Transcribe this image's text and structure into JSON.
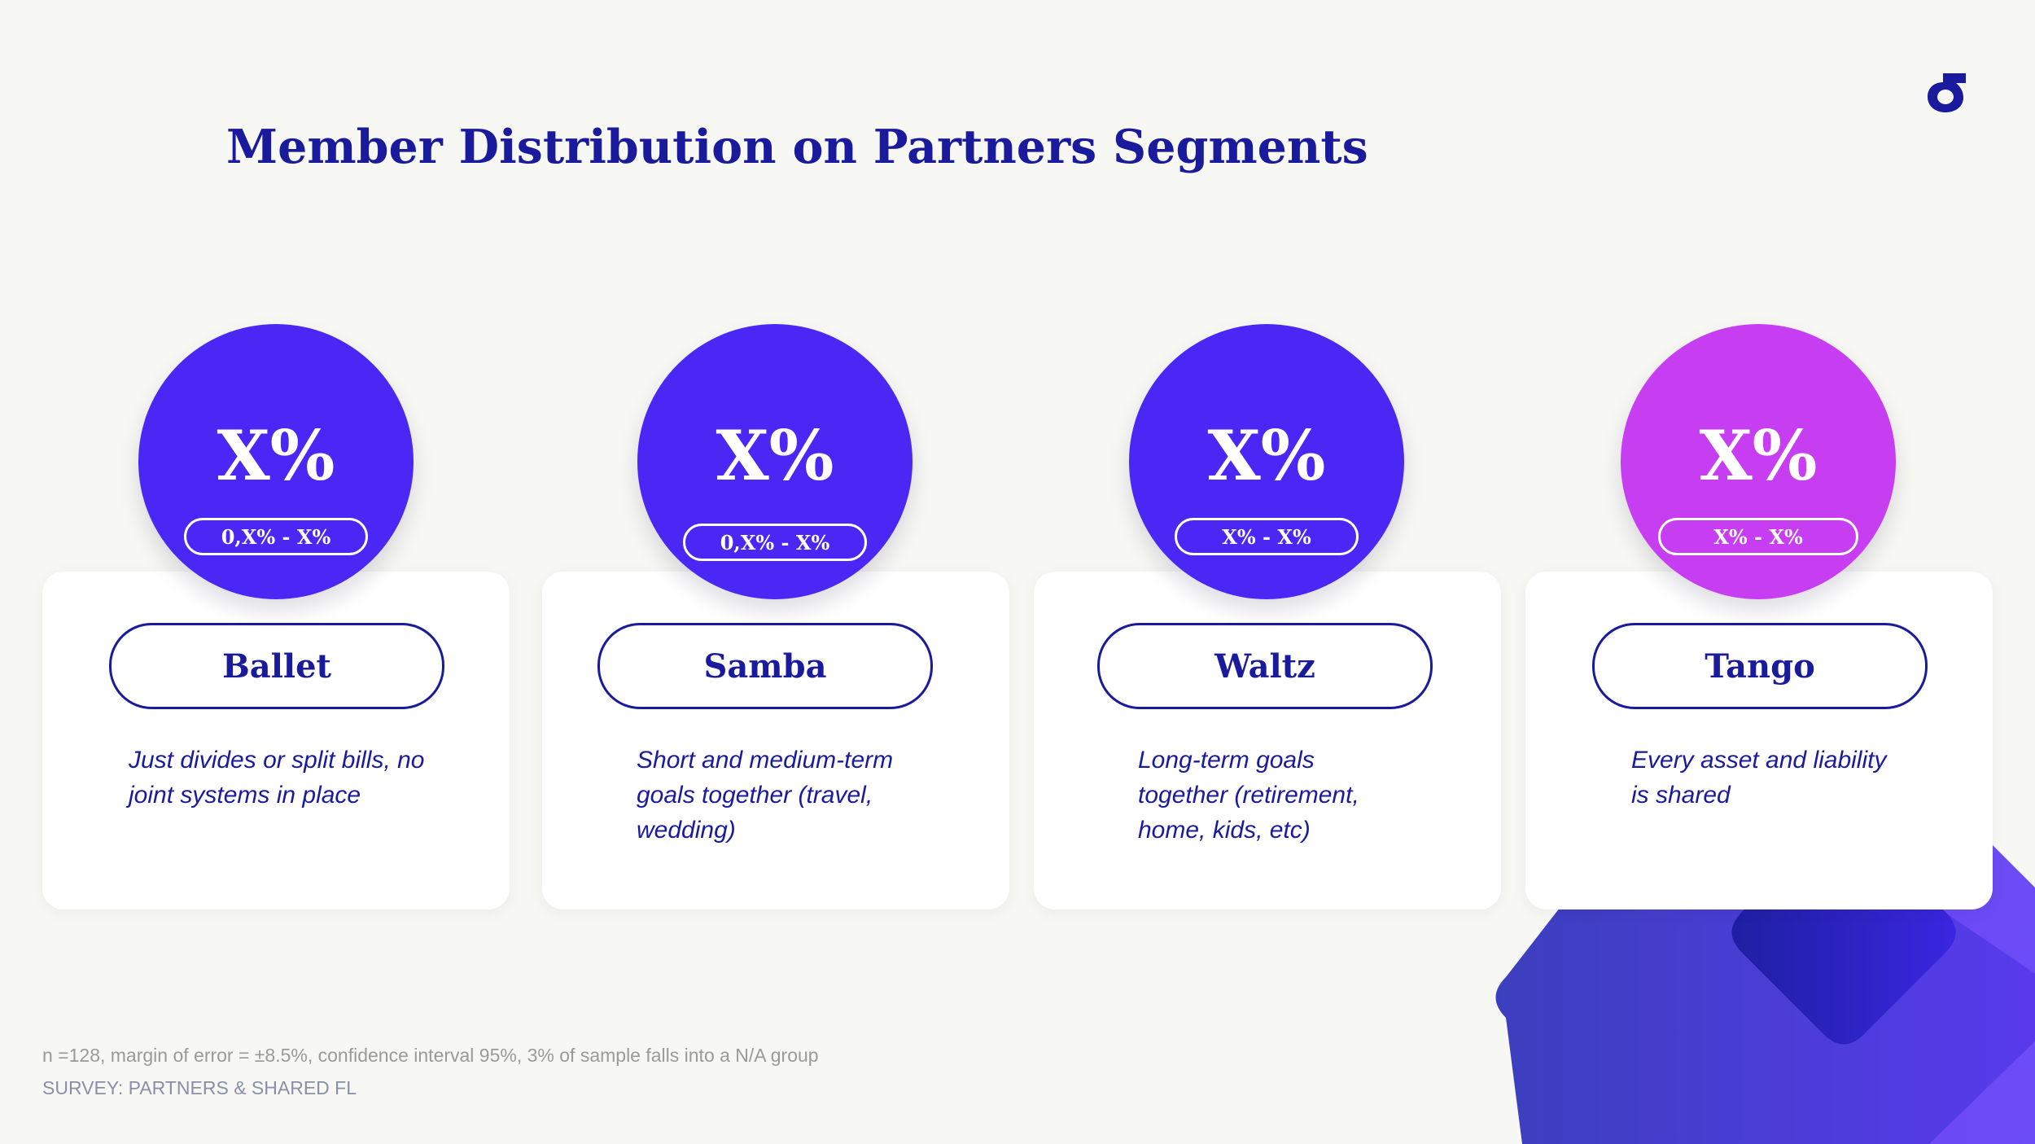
{
  "slide": {
    "title": "Member Distribution on Partners Segments",
    "logo_icon": "sigma-logo-icon",
    "colors": {
      "title": "#1a1a9c",
      "blue_circle": "#4a27f5",
      "magenta_circle": "#c73ef2",
      "background": "#f7f7f4"
    }
  },
  "segments": [
    {
      "name": "Ballet",
      "percent": "X%",
      "range": "0,X% - X%",
      "description": "Just divides or split bills, no joint systems in place"
    },
    {
      "name": "Samba",
      "percent": "X%",
      "range": "0,X% - X%",
      "description": "Short and medium-term goals together (travel, wedding)"
    },
    {
      "name": "Waltz",
      "percent": "X%",
      "range": "X% - X%",
      "description": "Long-term goals together (retirement, home, kids, etc)"
    },
    {
      "name": "Tango",
      "percent": "X%",
      "range": "X% - X%",
      "description": "Every asset and liability is shared"
    }
  ],
  "footer": {
    "note": "n =128, margin of error = ±8.5%, confidence interval 95%, 3% of sample  falls  into a N/A group",
    "source": "SURVEY: PARTNERS & SHARED FL"
  }
}
